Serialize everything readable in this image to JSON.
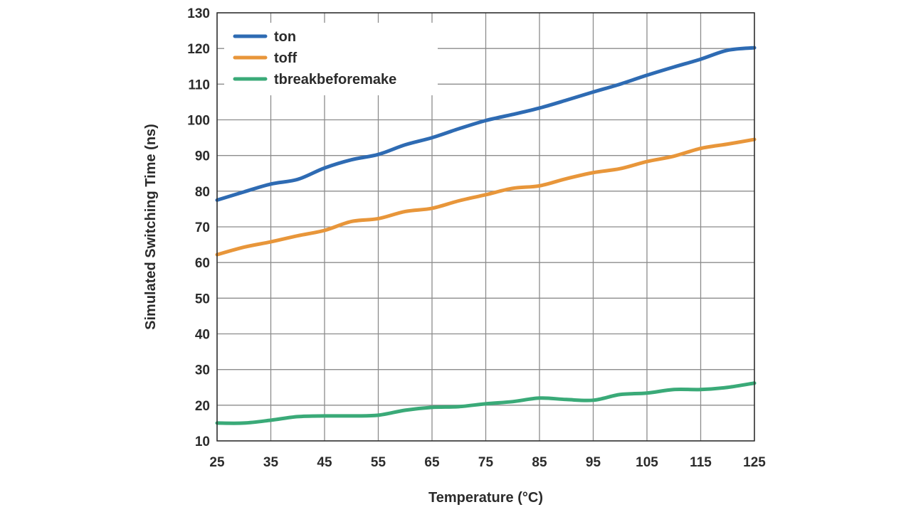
{
  "chart_data": {
    "type": "line",
    "title": "",
    "xlabel": "Temperature (°C)",
    "ylabel": "Simulated Switching Time (ns)",
    "xlim": [
      25,
      125
    ],
    "ylim": [
      10,
      130
    ],
    "xticks": [
      25,
      35,
      45,
      55,
      65,
      75,
      85,
      95,
      105,
      115,
      125
    ],
    "yticks": [
      10,
      20,
      30,
      40,
      50,
      60,
      70,
      80,
      90,
      100,
      110,
      120,
      130
    ],
    "xtick_labels": [
      "25",
      "35",
      "45",
      "55",
      "65",
      "75",
      "85",
      "95",
      "105",
      "115",
      "125"
    ],
    "ytick_labels": [
      "10",
      "20",
      "30",
      "40",
      "50",
      "60",
      "70",
      "80",
      "90",
      "100",
      "110",
      "120",
      "130"
    ],
    "grid": true,
    "legend_position": "top-left",
    "series": [
      {
        "name": "ton",
        "color": "#2e6bb3",
        "x": [
          25,
          30,
          35,
          40,
          45,
          50,
          55,
          60,
          65,
          70,
          75,
          80,
          85,
          90,
          95,
          100,
          105,
          110,
          115,
          120,
          125
        ],
        "y": [
          77.5,
          79.8,
          82,
          83.3,
          86.5,
          88.8,
          90.3,
          93,
          95,
          97.5,
          99.8,
          101.5,
          103.3,
          105.5,
          107.8,
          110,
          112.5,
          114.8,
          117,
          119.5,
          120.2
        ]
      },
      {
        "name": "toff",
        "color": "#e8963a",
        "x": [
          25,
          30,
          35,
          40,
          45,
          50,
          55,
          60,
          65,
          70,
          75,
          80,
          85,
          90,
          95,
          100,
          105,
          110,
          115,
          120,
          125
        ],
        "y": [
          62.2,
          64.3,
          65.8,
          67.5,
          69,
          71.5,
          72.3,
          74.3,
          75.2,
          77.3,
          79,
          80.8,
          81.5,
          83.5,
          85.2,
          86.3,
          88.3,
          89.8,
          92,
          93.2,
          94.5
        ]
      },
      {
        "name": "tbreakbeforemake",
        "color": "#3aaa78",
        "x": [
          25,
          30,
          35,
          40,
          45,
          50,
          55,
          60,
          65,
          70,
          75,
          80,
          85,
          90,
          95,
          100,
          105,
          110,
          115,
          120,
          125
        ],
        "y": [
          15,
          15,
          15.8,
          16.8,
          17,
          17,
          17.2,
          18.6,
          19.4,
          19.6,
          20.4,
          21,
          22,
          21.6,
          21.4,
          23,
          23.4,
          24.4,
          24.4,
          25,
          26.2
        ]
      }
    ]
  }
}
